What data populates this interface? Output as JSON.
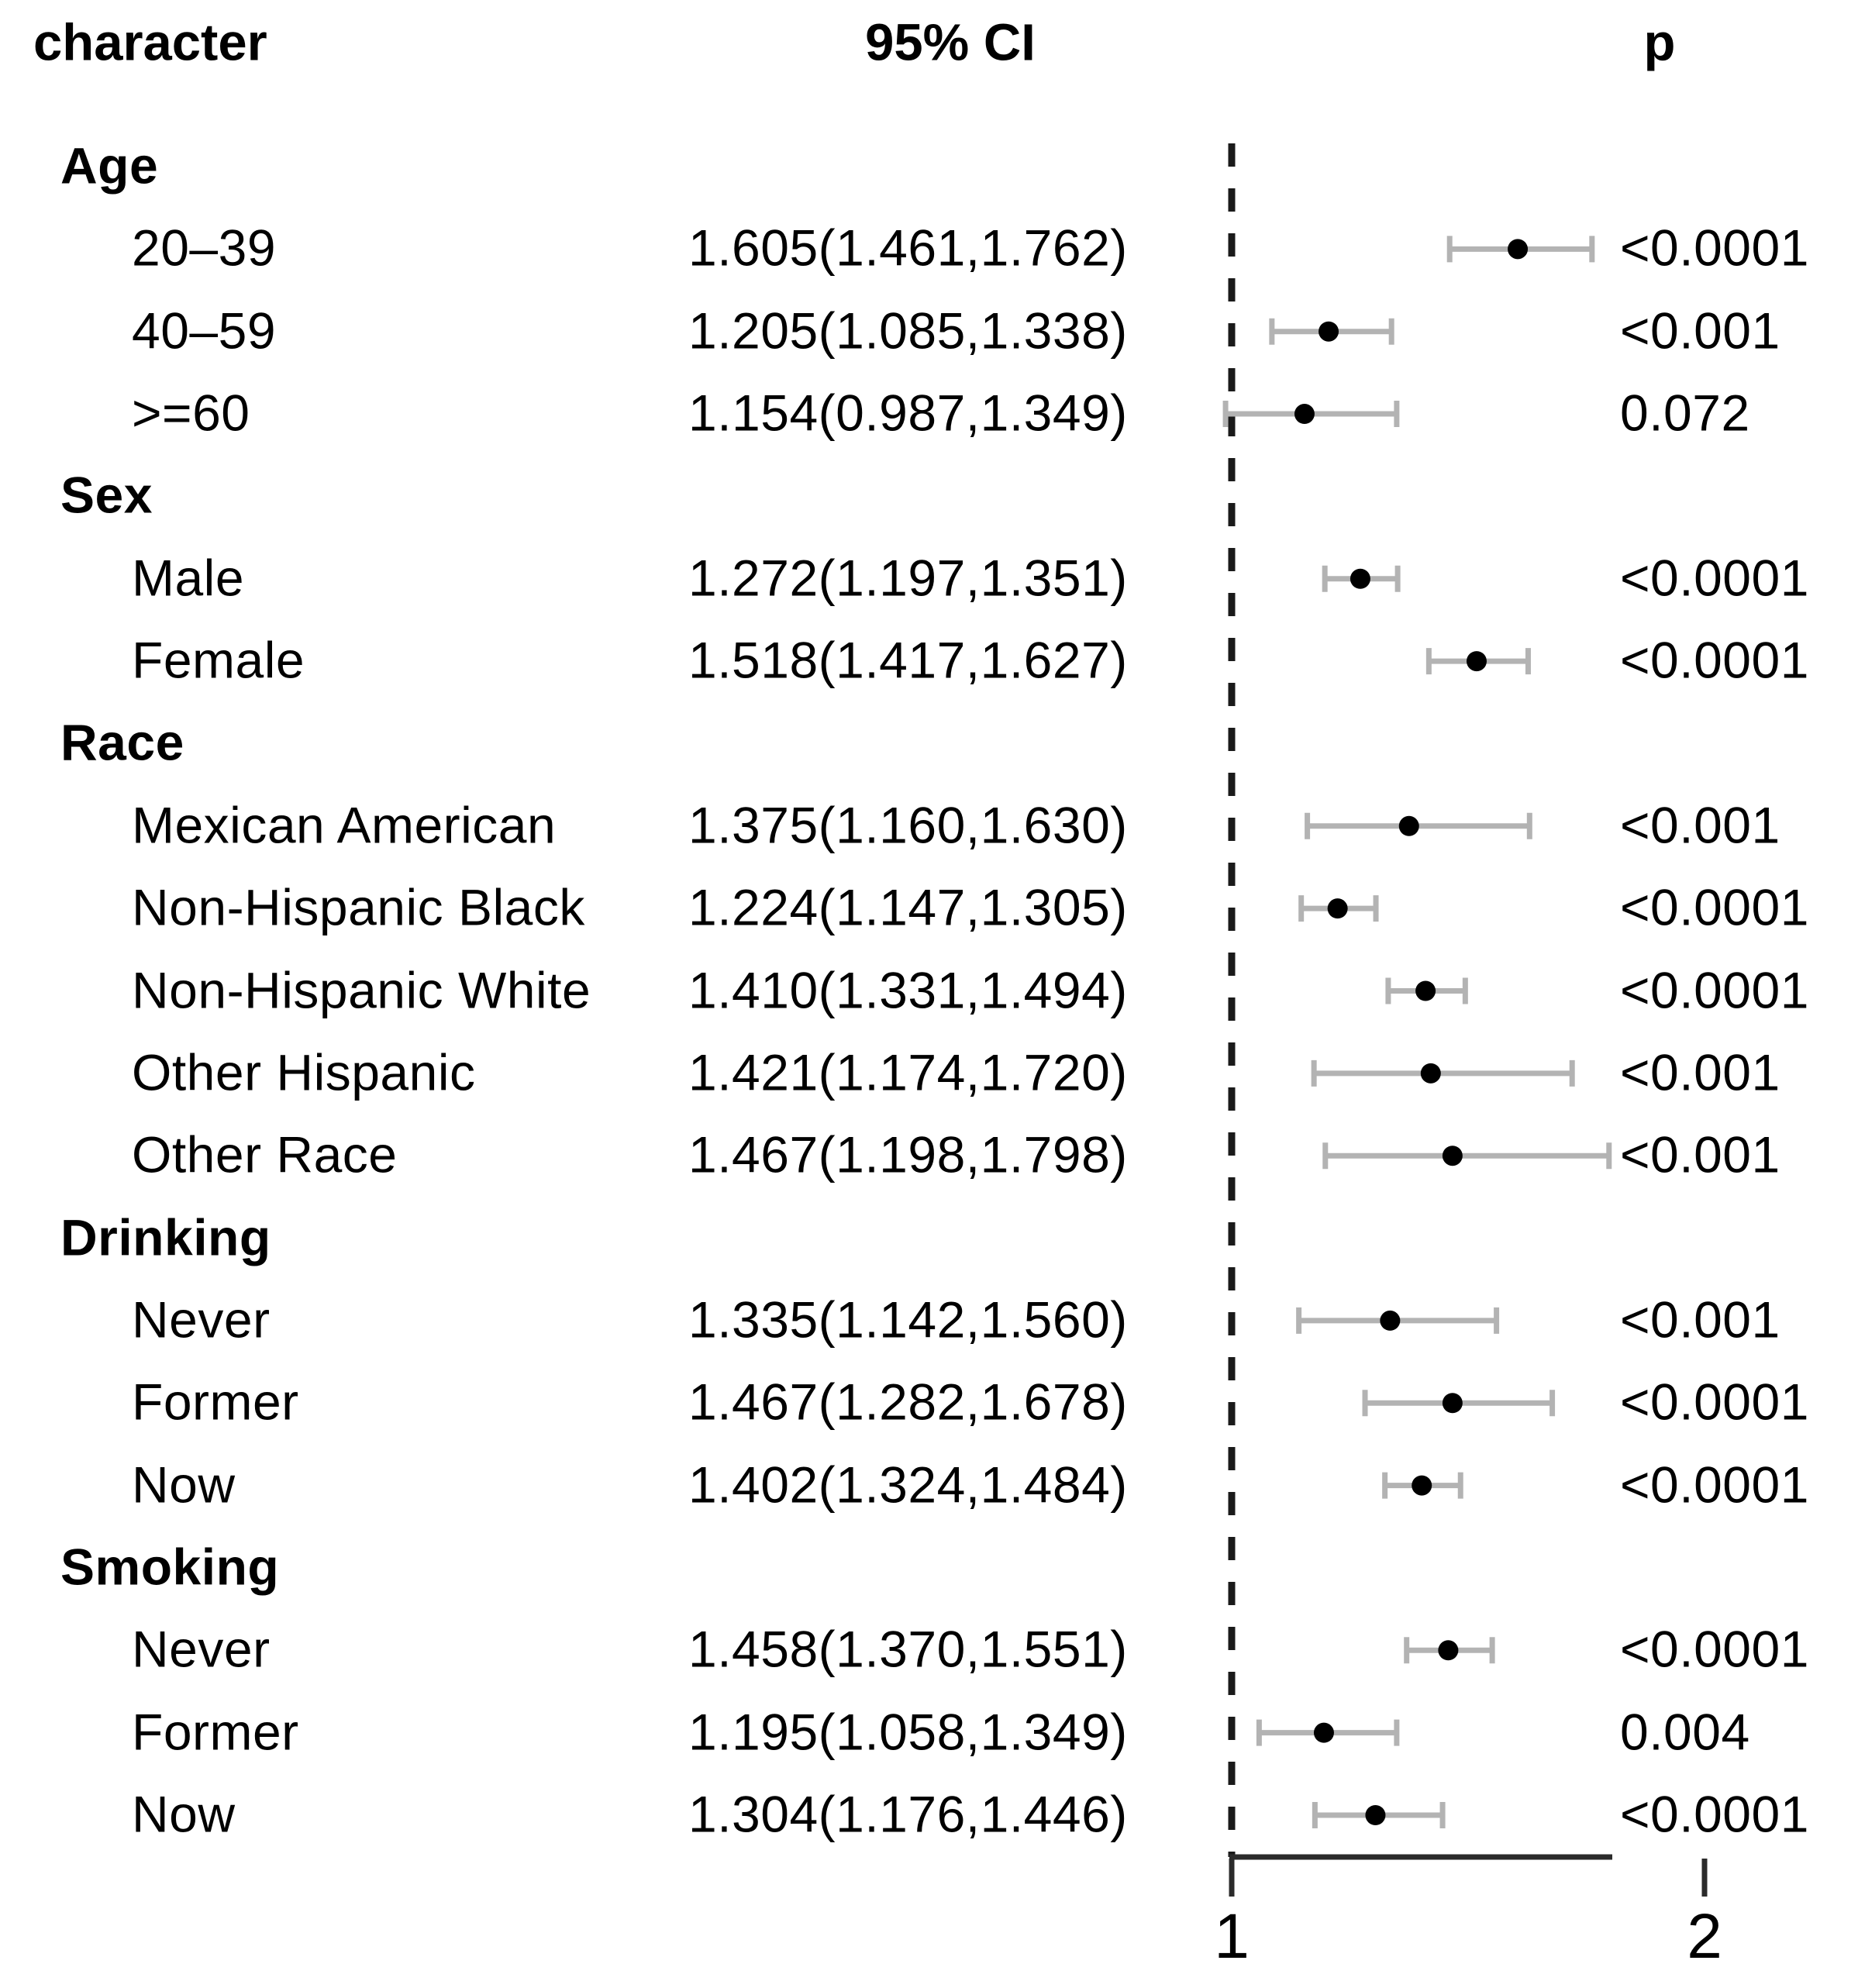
{
  "figure": {
    "columns": {
      "character": "character",
      "ci": "95% CI",
      "p": "p"
    }
  },
  "colors": {
    "background": "#ffffff",
    "text": "#000000",
    "error_bar": "#b3b3b3",
    "point": "#000000",
    "reference_line": "#1a1a1a",
    "axis": "#2b2b2b"
  },
  "chart_data": {
    "type": "scatter",
    "variant": "forest_plot",
    "title": "",
    "columns": [
      "character",
      "95% CI",
      "p"
    ],
    "x_axis": {
      "scale": "linear",
      "ticks": [
        1,
        2
      ],
      "tick_labels": [
        "1",
        "2"
      ],
      "reference_line_x": 1,
      "panel_range": [
        1,
        1.81
      ],
      "grid": false
    },
    "groups": [
      {
        "name": "Age",
        "rows": [
          {
            "label": "20–39",
            "est": 1.605,
            "lo": 1.461,
            "hi": 1.762,
            "ci_text": "1.605(1.461,1.762)",
            "p": "<0.0001"
          },
          {
            "label": "40–59",
            "est": 1.205,
            "lo": 1.085,
            "hi": 1.338,
            "ci_text": "1.205(1.085,1.338)",
            "p": "<0.001"
          },
          {
            "label": ">=60",
            "est": 1.154,
            "lo": 0.987,
            "hi": 1.349,
            "ci_text": "1.154(0.987,1.349)",
            "p": "0.072"
          }
        ]
      },
      {
        "name": "Sex",
        "rows": [
          {
            "label": "Male",
            "est": 1.272,
            "lo": 1.197,
            "hi": 1.351,
            "ci_text": "1.272(1.197,1.351)",
            "p": "<0.0001"
          },
          {
            "label": "Female",
            "est": 1.518,
            "lo": 1.417,
            "hi": 1.627,
            "ci_text": "1.518(1.417,1.627)",
            "p": "<0.0001"
          }
        ]
      },
      {
        "name": "Race",
        "rows": [
          {
            "label": "Mexican American",
            "est": 1.375,
            "lo": 1.16,
            "hi": 1.63,
            "ci_text": "1.375(1.160,1.630)",
            "p": "<0.001"
          },
          {
            "label": "Non-Hispanic Black",
            "est": 1.224,
            "lo": 1.147,
            "hi": 1.305,
            "ci_text": "1.224(1.147,1.305)",
            "p": "<0.0001"
          },
          {
            "label": "Non-Hispanic White",
            "est": 1.41,
            "lo": 1.331,
            "hi": 1.494,
            "ci_text": "1.410(1.331,1.494)",
            "p": "<0.0001"
          },
          {
            "label": "Other Hispanic",
            "est": 1.421,
            "lo": 1.174,
            "hi": 1.72,
            "ci_text": "1.421(1.174,1.720)",
            "p": "<0.001"
          },
          {
            "label": "Other Race",
            "est": 1.467,
            "lo": 1.198,
            "hi": 1.798,
            "ci_text": "1.467(1.198,1.798)",
            "p": "<0.001"
          }
        ]
      },
      {
        "name": "Drinking",
        "rows": [
          {
            "label": "Never",
            "est": 1.335,
            "lo": 1.142,
            "hi": 1.56,
            "ci_text": "1.335(1.142,1.560)",
            "p": "<0.001"
          },
          {
            "label": "Former",
            "est": 1.467,
            "lo": 1.282,
            "hi": 1.678,
            "ci_text": "1.467(1.282,1.678)",
            "p": "<0.0001"
          },
          {
            "label": "Now",
            "est": 1.402,
            "lo": 1.324,
            "hi": 1.484,
            "ci_text": "1.402(1.324,1.484)",
            "p": "<0.0001"
          }
        ]
      },
      {
        "name": "Smoking",
        "rows": [
          {
            "label": "Never",
            "est": 1.458,
            "lo": 1.37,
            "hi": 1.551,
            "ci_text": "1.458(1.370,1.551)",
            "p": "<0.0001"
          },
          {
            "label": "Former",
            "est": 1.195,
            "lo": 1.058,
            "hi": 1.349,
            "ci_text": "1.195(1.058,1.349)",
            "p": "0.004"
          },
          {
            "label": "Now",
            "est": 1.304,
            "lo": 1.176,
            "hi": 1.446,
            "ci_text": "1.304(1.176,1.446)",
            "p": "<0.0001"
          }
        ]
      }
    ]
  }
}
